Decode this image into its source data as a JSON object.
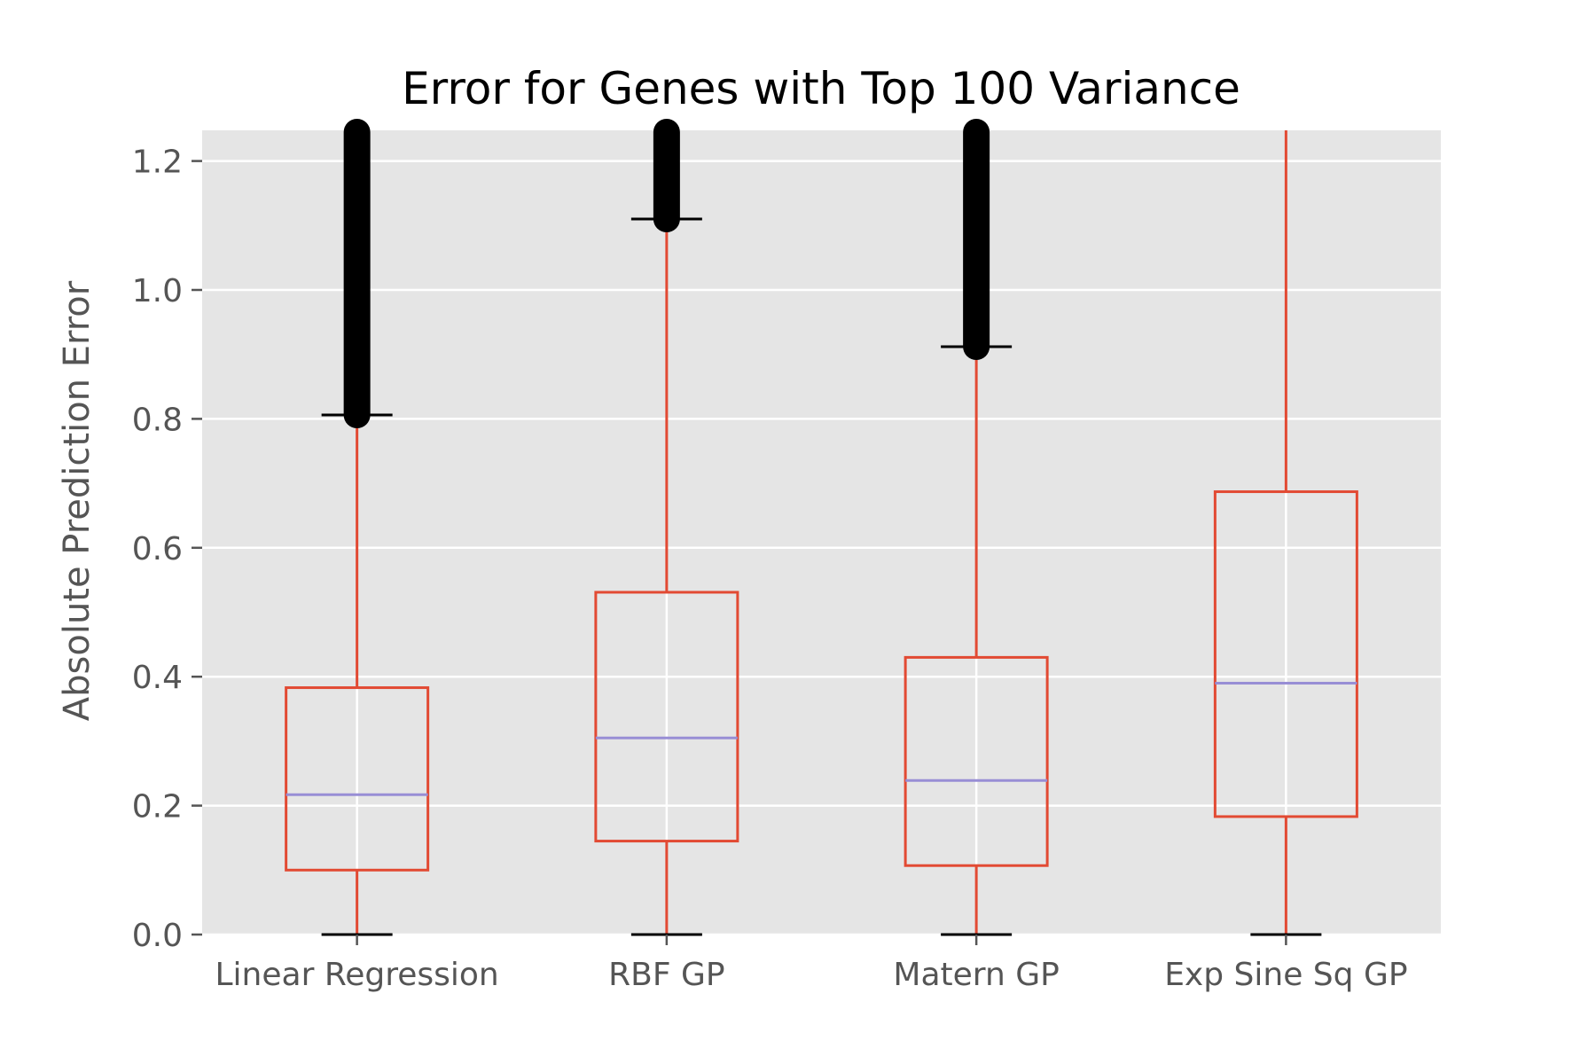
{
  "chart_data": {
    "type": "box",
    "title": "Error for Genes with Top 100 Variance",
    "xlabel": "",
    "ylabel": "Absolute Prediction Error",
    "ylim": [
      0.0,
      1.25
    ],
    "yticks": [
      0.0,
      0.2,
      0.4,
      0.6,
      0.8,
      1.0,
      1.2
    ],
    "ytick_labels": [
      "0.0",
      "0.2",
      "0.4",
      "0.6",
      "0.8",
      "1.0",
      "1.2"
    ],
    "grid": true,
    "categories": [
      "Linear Regression",
      "RBF GP",
      "Matern GP",
      "Exp Sine Sq GP"
    ],
    "boxes": [
      {
        "name": "Linear Regression",
        "whisker_low": 0.0,
        "q1": 0.1,
        "median": 0.217,
        "q3": 0.383,
        "whisker_high": 0.806,
        "outliers_from": 0.806,
        "outliers_to": 1.25
      },
      {
        "name": "RBF GP",
        "whisker_low": 0.0,
        "q1": 0.145,
        "median": 0.305,
        "q3": 0.531,
        "whisker_high": 1.11,
        "outliers_from": 1.11,
        "outliers_to": 1.25
      },
      {
        "name": "Matern GP",
        "whisker_low": 0.0,
        "q1": 0.107,
        "median": 0.239,
        "q3": 0.43,
        "whisker_high": 0.912,
        "outliers_from": 0.912,
        "outliers_to": 1.25
      },
      {
        "name": "Exp Sine Sq GP",
        "whisker_low": 0.0,
        "q1": 0.183,
        "median": 0.39,
        "q3": 0.687,
        "whisker_high": 1.25,
        "outliers_from": null,
        "outliers_to": null
      }
    ],
    "colors": {
      "background": "#e5e5e5",
      "grid": "#ffffff",
      "box": "#e24a33",
      "median": "#988ed5",
      "outlier": "#000000",
      "tick": "#555555"
    }
  }
}
